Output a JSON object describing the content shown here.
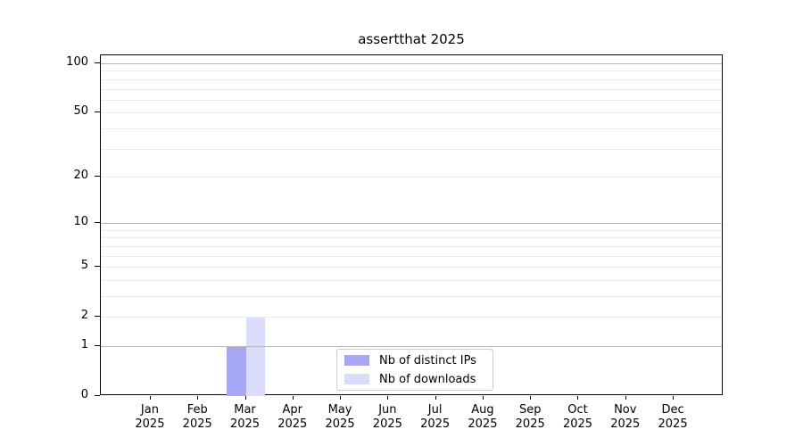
{
  "chart_data": {
    "type": "bar",
    "title": "assertthat 2025",
    "x_year": "2025",
    "categories": [
      "Jan",
      "Feb",
      "Mar",
      "Apr",
      "May",
      "Jun",
      "Jul",
      "Aug",
      "Sep",
      "Oct",
      "Nov",
      "Dec"
    ],
    "series": [
      {
        "name": "Nb of distinct IPs",
        "color": "#a7a7f7",
        "values": [
          0,
          0,
          1,
          0,
          0,
          0,
          0,
          0,
          0,
          0,
          0,
          0
        ]
      },
      {
        "name": "Nb of downloads",
        "color": "#dbdbfb",
        "values": [
          0,
          0,
          2,
          0,
          0,
          0,
          0,
          0,
          0,
          0,
          0,
          0
        ]
      }
    ],
    "yscale": "log1p",
    "yticks": [
      0,
      1,
      2,
      5,
      10,
      20,
      50,
      100
    ],
    "grid_major": [
      1,
      10,
      100
    ],
    "grid_minor": [
      2,
      3,
      4,
      5,
      6,
      7,
      8,
      9,
      20,
      30,
      40,
      50,
      60,
      70,
      80,
      90
    ],
    "ylim": [
      0,
      112
    ],
    "xlim": [
      -1.05,
      12.05
    ],
    "bar_width_frac": 0.4,
    "grid": true,
    "legend_position": "lower center",
    "colors": {
      "grid_major": "#b9b9b9",
      "grid_minor": "#ececec",
      "axis": "#000000",
      "legend_border": "#cccccc"
    }
  }
}
